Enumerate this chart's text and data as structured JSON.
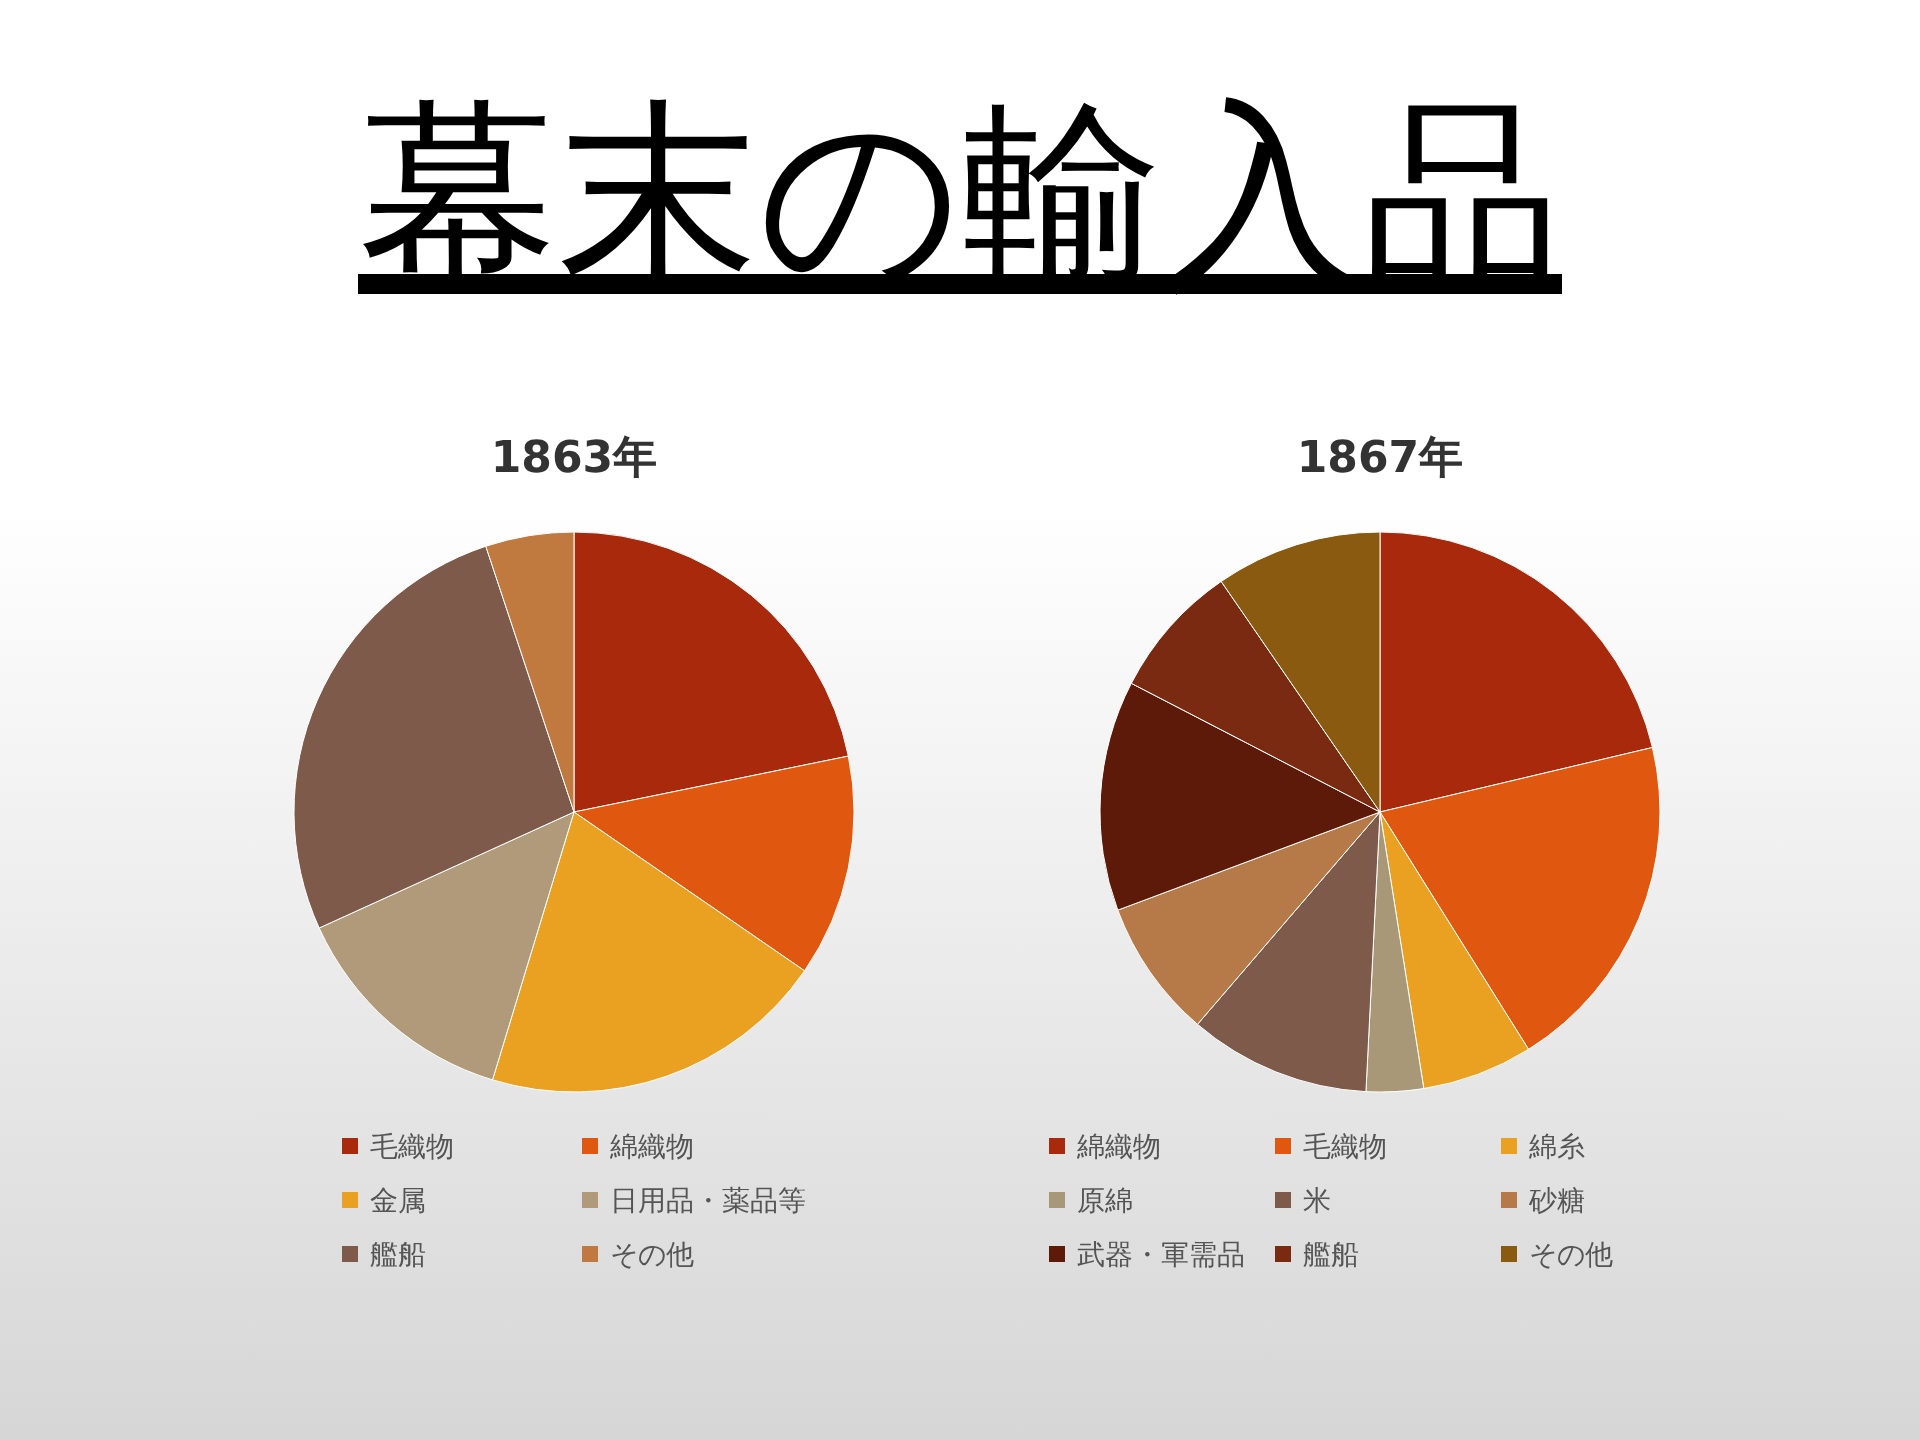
{
  "chart_data": [
    {
      "type": "pie",
      "title": "1863年",
      "annotations": [
        "幕末の輸入品"
      ],
      "legend": "bottom",
      "categories": [
        "毛織物",
        "綿織物",
        "金属",
        "日用品・薬品等",
        "艦船",
        "その他"
      ],
      "values": [
        21.8,
        12.8,
        20.1,
        13.5,
        26.7,
        5.1
      ],
      "colors": [
        "#a8290c",
        "#e0580f",
        "#eaa020",
        "#b09a7a",
        "#7d5a4a",
        "#c07a40"
      ]
    },
    {
      "type": "pie",
      "title": "1867年",
      "legend": "bottom",
      "categories": [
        "綿織物",
        "毛織物",
        "綿糸",
        "原綿",
        "米",
        "砂糖",
        "武器・軍需品",
        "艦船",
        "その他"
      ],
      "values": [
        21.3,
        19.8,
        6.4,
        3.3,
        10.5,
        8.0,
        13.3,
        7.8,
        9.6
      ],
      "colors": [
        "#a8290c",
        "#e0580f",
        "#eaa020",
        "#a89878",
        "#7d5a4a",
        "#b57a48",
        "#5e1a08",
        "#7a2a10",
        "#8a5a10"
      ]
    }
  ]
}
